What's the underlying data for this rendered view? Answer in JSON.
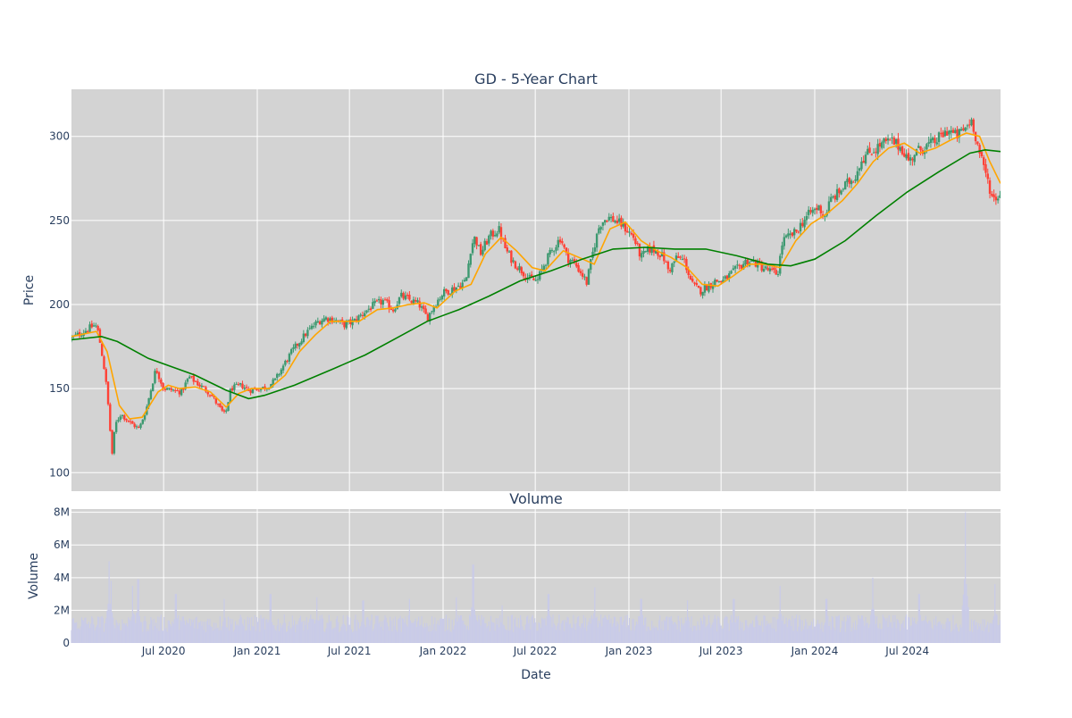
{
  "chart_data": [
    {
      "type": "candlestick",
      "title": "GD - 5-Year Chart",
      "xlabel": "",
      "ylabel": "Price",
      "x_range": [
        "2020-01-02",
        "2024-12-31"
      ],
      "ylim": [
        89,
        328
      ],
      "yticks": [
        100,
        150,
        200,
        250,
        300
      ],
      "grid": true,
      "plot_background": "#d3d3d3",
      "increasing_color": "#3d9970",
      "decreasing_color": "#ff4136",
      "close_anchors": [
        [
          "2020-01-02",
          180
        ],
        [
          "2020-01-15",
          182
        ],
        [
          "2020-02-01",
          185
        ],
        [
          "2020-02-18",
          188
        ],
        [
          "2020-02-24",
          183
        ],
        [
          "2020-03-05",
          165
        ],
        [
          "2020-03-12",
          148
        ],
        [
          "2020-03-18",
          125
        ],
        [
          "2020-03-23",
          108
        ],
        [
          "2020-03-27",
          128
        ],
        [
          "2020-04-08",
          135
        ],
        [
          "2020-04-25",
          130
        ],
        [
          "2020-05-14",
          126
        ],
        [
          "2020-05-28",
          138
        ],
        [
          "2020-06-08",
          152
        ],
        [
          "2020-06-16",
          162
        ],
        [
          "2020-07-01",
          150
        ],
        [
          "2020-07-20",
          149
        ],
        [
          "2020-08-05",
          148
        ],
        [
          "2020-08-20",
          157
        ],
        [
          "2020-09-10",
          152
        ],
        [
          "2020-10-01",
          147
        ],
        [
          "2020-10-20",
          138
        ],
        [
          "2020-10-30",
          134
        ],
        [
          "2020-11-10",
          150
        ],
        [
          "2020-12-01",
          152
        ],
        [
          "2020-12-15",
          149
        ],
        [
          "2021-01-05",
          150
        ],
        [
          "2021-01-20",
          151
        ],
        [
          "2021-02-05",
          155
        ],
        [
          "2021-02-20",
          163
        ],
        [
          "2021-03-10",
          172
        ],
        [
          "2021-03-25",
          178
        ],
        [
          "2021-04-10",
          184
        ],
        [
          "2021-05-01",
          190
        ],
        [
          "2021-05-15",
          192
        ],
        [
          "2021-06-01",
          191
        ],
        [
          "2021-06-20",
          188
        ],
        [
          "2021-07-10",
          190
        ],
        [
          "2021-08-01",
          196
        ],
        [
          "2021-08-20",
          200
        ],
        [
          "2021-09-05",
          202
        ],
        [
          "2021-09-25",
          197
        ],
        [
          "2021-10-10",
          205
        ],
        [
          "2021-10-25",
          203
        ],
        [
          "2021-11-15",
          200
        ],
        [
          "2021-12-01",
          192
        ],
        [
          "2021-12-15",
          200
        ],
        [
          "2022-01-01",
          207
        ],
        [
          "2022-01-25",
          210
        ],
        [
          "2022-02-15",
          214
        ],
        [
          "2022-02-25",
          235
        ],
        [
          "2022-03-05",
          240
        ],
        [
          "2022-03-15",
          230
        ],
        [
          "2022-04-01",
          240
        ],
        [
          "2022-04-20",
          245
        ],
        [
          "2022-05-05",
          232
        ],
        [
          "2022-05-20",
          225
        ],
        [
          "2022-06-05",
          220
        ],
        [
          "2022-06-20",
          215
        ],
        [
          "2022-07-05",
          214
        ],
        [
          "2022-07-20",
          225
        ],
        [
          "2022-08-05",
          233
        ],
        [
          "2022-08-20",
          240
        ],
        [
          "2022-09-01",
          228
        ],
        [
          "2022-09-15",
          225
        ],
        [
          "2022-10-01",
          218
        ],
        [
          "2022-10-10",
          213
        ],
        [
          "2022-10-25",
          235
        ],
        [
          "2022-11-05",
          248
        ],
        [
          "2022-11-20",
          252
        ],
        [
          "2022-12-05",
          250
        ],
        [
          "2022-12-20",
          247
        ],
        [
          "2023-01-10",
          240
        ],
        [
          "2023-01-25",
          228
        ],
        [
          "2023-02-10",
          233
        ],
        [
          "2023-02-25",
          232
        ],
        [
          "2023-03-10",
          228
        ],
        [
          "2023-03-20",
          220
        ],
        [
          "2023-04-05",
          228
        ],
        [
          "2023-04-20",
          226
        ],
        [
          "2023-05-05",
          212
        ],
        [
          "2023-05-20",
          208
        ],
        [
          "2023-06-05",
          211
        ],
        [
          "2023-06-20",
          214
        ],
        [
          "2023-07-05",
          214
        ],
        [
          "2023-07-20",
          218
        ],
        [
          "2023-08-05",
          222
        ],
        [
          "2023-08-20",
          226
        ],
        [
          "2023-09-05",
          225
        ],
        [
          "2023-09-20",
          222
        ],
        [
          "2023-10-05",
          220
        ],
        [
          "2023-10-20",
          218
        ],
        [
          "2023-10-30",
          238
        ],
        [
          "2023-11-10",
          240
        ],
        [
          "2023-11-25",
          243
        ],
        [
          "2023-12-10",
          250
        ],
        [
          "2023-12-25",
          255
        ],
        [
          "2024-01-10",
          258
        ],
        [
          "2024-01-20",
          252
        ],
        [
          "2024-02-01",
          262
        ],
        [
          "2024-02-15",
          266
        ],
        [
          "2024-03-05",
          272
        ],
        [
          "2024-03-20",
          276
        ],
        [
          "2024-04-01",
          286
        ],
        [
          "2024-04-15",
          290
        ],
        [
          "2024-05-01",
          293
        ],
        [
          "2024-05-15",
          296
        ],
        [
          "2024-06-01",
          297
        ],
        [
          "2024-06-20",
          293
        ],
        [
          "2024-07-05",
          285
        ],
        [
          "2024-07-15",
          290
        ],
        [
          "2024-08-05",
          294
        ],
        [
          "2024-08-20",
          296
        ],
        [
          "2024-09-05",
          300
        ],
        [
          "2024-09-20",
          304
        ],
        [
          "2024-10-05",
          300
        ],
        [
          "2024-10-20",
          304
        ],
        [
          "2024-11-05",
          310
        ],
        [
          "2024-11-15",
          296
        ],
        [
          "2024-11-25",
          284
        ],
        [
          "2024-12-05",
          275
        ],
        [
          "2024-12-15",
          263
        ],
        [
          "2024-12-31",
          265
        ]
      ],
      "series": [
        {
          "type": "line",
          "color": "#ffa500",
          "points": [
            [
              "2020-01-02",
              181
            ],
            [
              "2020-02-20",
              184
            ],
            [
              "2020-03-12",
              172
            ],
            [
              "2020-04-05",
              140
            ],
            [
              "2020-04-25",
              132
            ],
            [
              "2020-05-20",
              133
            ],
            [
              "2020-06-20",
              148
            ],
            [
              "2020-07-10",
              152
            ],
            [
              "2020-08-01",
              150
            ],
            [
              "2020-09-01",
              151
            ],
            [
              "2020-10-01",
              148
            ],
            [
              "2020-11-01",
              139
            ],
            [
              "2020-11-25",
              147
            ],
            [
              "2020-12-20",
              150
            ],
            [
              "2021-01-25",
              150
            ],
            [
              "2021-02-25",
              158
            ],
            [
              "2021-03-25",
              172
            ],
            [
              "2021-04-25",
              182
            ],
            [
              "2021-05-25",
              190
            ],
            [
              "2021-06-25",
              190
            ],
            [
              "2021-07-20",
              190
            ],
            [
              "2021-08-25",
              197
            ],
            [
              "2021-09-25",
              198
            ],
            [
              "2021-10-25",
              200
            ],
            [
              "2021-11-25",
              201
            ],
            [
              "2021-12-20",
              198
            ],
            [
              "2022-01-25",
              208
            ],
            [
              "2022-02-25",
              212
            ],
            [
              "2022-03-25",
              230
            ],
            [
              "2022-04-25",
              240
            ],
            [
              "2022-05-25",
              232
            ],
            [
              "2022-06-25",
              222
            ],
            [
              "2022-07-20",
              220
            ],
            [
              "2022-08-25",
              232
            ],
            [
              "2022-09-25",
              228
            ],
            [
              "2022-10-25",
              224
            ],
            [
              "2022-11-25",
              245
            ],
            [
              "2022-12-25",
              249
            ],
            [
              "2023-01-25",
              238
            ],
            [
              "2023-02-25",
              232
            ],
            [
              "2023-03-25",
              228
            ],
            [
              "2023-04-25",
              222
            ],
            [
              "2023-05-25",
              212
            ],
            [
              "2023-06-25",
              211
            ],
            [
              "2023-07-25",
              217
            ],
            [
              "2023-08-25",
              224
            ],
            [
              "2023-09-25",
              224
            ],
            [
              "2023-10-25",
              222
            ],
            [
              "2023-11-25",
              238
            ],
            [
              "2023-12-25",
              248
            ],
            [
              "2024-01-25",
              254
            ],
            [
              "2024-02-25",
              262
            ],
            [
              "2024-03-25",
              272
            ],
            [
              "2024-04-25",
              285
            ],
            [
              "2024-05-25",
              293
            ],
            [
              "2024-06-25",
              296
            ],
            [
              "2024-07-25",
              290
            ],
            [
              "2024-08-25",
              293
            ],
            [
              "2024-09-25",
              298
            ],
            [
              "2024-10-25",
              302
            ],
            [
              "2024-11-20",
              300
            ],
            [
              "2024-12-10",
              285
            ],
            [
              "2024-12-31",
              272
            ]
          ]
        },
        {
          "type": "line",
          "color": "#008000",
          "points": [
            [
              "2020-01-02",
              179
            ],
            [
              "2020-03-01",
              181
            ],
            [
              "2020-04-01",
              178
            ],
            [
              "2020-06-01",
              168
            ],
            [
              "2020-09-01",
              158
            ],
            [
              "2020-11-01",
              149
            ],
            [
              "2020-12-15",
              144
            ],
            [
              "2021-01-15",
              146
            ],
            [
              "2021-03-15",
              152
            ],
            [
              "2021-06-01",
              162
            ],
            [
              "2021-08-01",
              170
            ],
            [
              "2021-10-01",
              180
            ],
            [
              "2021-12-01",
              190
            ],
            [
              "2022-02-01",
              197
            ],
            [
              "2022-04-01",
              205
            ],
            [
              "2022-06-01",
              214
            ],
            [
              "2022-08-01",
              220
            ],
            [
              "2022-10-01",
              227
            ],
            [
              "2022-12-01",
              233
            ],
            [
              "2023-02-01",
              234
            ],
            [
              "2023-04-01",
              233
            ],
            [
              "2023-06-01",
              233
            ],
            [
              "2023-08-01",
              229
            ],
            [
              "2023-10-01",
              224
            ],
            [
              "2023-11-15",
              223
            ],
            [
              "2024-01-01",
              227
            ],
            [
              "2024-03-01",
              238
            ],
            [
              "2024-05-01",
              253
            ],
            [
              "2024-07-01",
              267
            ],
            [
              "2024-09-01",
              279
            ],
            [
              "2024-11-01",
              290
            ],
            [
              "2024-12-01",
              292
            ],
            [
              "2024-12-31",
              291
            ]
          ]
        }
      ]
    },
    {
      "type": "bar",
      "title": "Volume",
      "xlabel": "Date",
      "ylabel": "Volume",
      "x_range": [
        "2020-01-02",
        "2024-12-31"
      ],
      "ylim": [
        0,
        8200000
      ],
      "yticks": [
        0,
        2000000,
        4000000,
        6000000,
        8000000
      ],
      "ytick_labels": [
        "0",
        "2M",
        "4M",
        "6M",
        "8M"
      ],
      "xtick_dates": [
        "2020-07-01",
        "2021-01-01",
        "2021-07-01",
        "2022-01-01",
        "2022-07-01",
        "2023-01-01",
        "2023-07-01",
        "2024-01-01",
        "2024-07-01"
      ],
      "xtick_labels": [
        "Jul 2020",
        "Jan 2021",
        "Jul 2021",
        "Jan 2022",
        "Jul 2022",
        "Jan 2023",
        "Jul 2023",
        "Jan 2024",
        "Jul 2024"
      ],
      "bar_color": "#c9cbe8",
      "plot_background": "#d3d3d3",
      "grid": true,
      "typical_volume": 1200000,
      "volume_spikes": [
        [
          "2020-03-16",
          5000000
        ],
        [
          "2020-03-20",
          3800000
        ],
        [
          "2020-05-01",
          3500000
        ],
        [
          "2020-05-12",
          3900000
        ],
        [
          "2020-07-25",
          3000000
        ],
        [
          "2020-10-28",
          2700000
        ],
        [
          "2021-01-27",
          3000000
        ],
        [
          "2021-04-28",
          2800000
        ],
        [
          "2021-07-28",
          2600000
        ],
        [
          "2021-10-27",
          2700000
        ],
        [
          "2022-01-27",
          2800000
        ],
        [
          "2022-03-01",
          4800000
        ],
        [
          "2022-04-27",
          2300000
        ],
        [
          "2022-07-27",
          3000000
        ],
        [
          "2022-10-26",
          3400000
        ],
        [
          "2023-01-25",
          2700000
        ],
        [
          "2023-04-26",
          2600000
        ],
        [
          "2023-07-26",
          2700000
        ],
        [
          "2023-10-25",
          3500000
        ],
        [
          "2024-01-24",
          2700000
        ],
        [
          "2024-04-24",
          4000000
        ],
        [
          "2024-07-24",
          3000000
        ],
        [
          "2024-10-23",
          8000000
        ],
        [
          "2024-12-20",
          3600000
        ]
      ]
    }
  ]
}
